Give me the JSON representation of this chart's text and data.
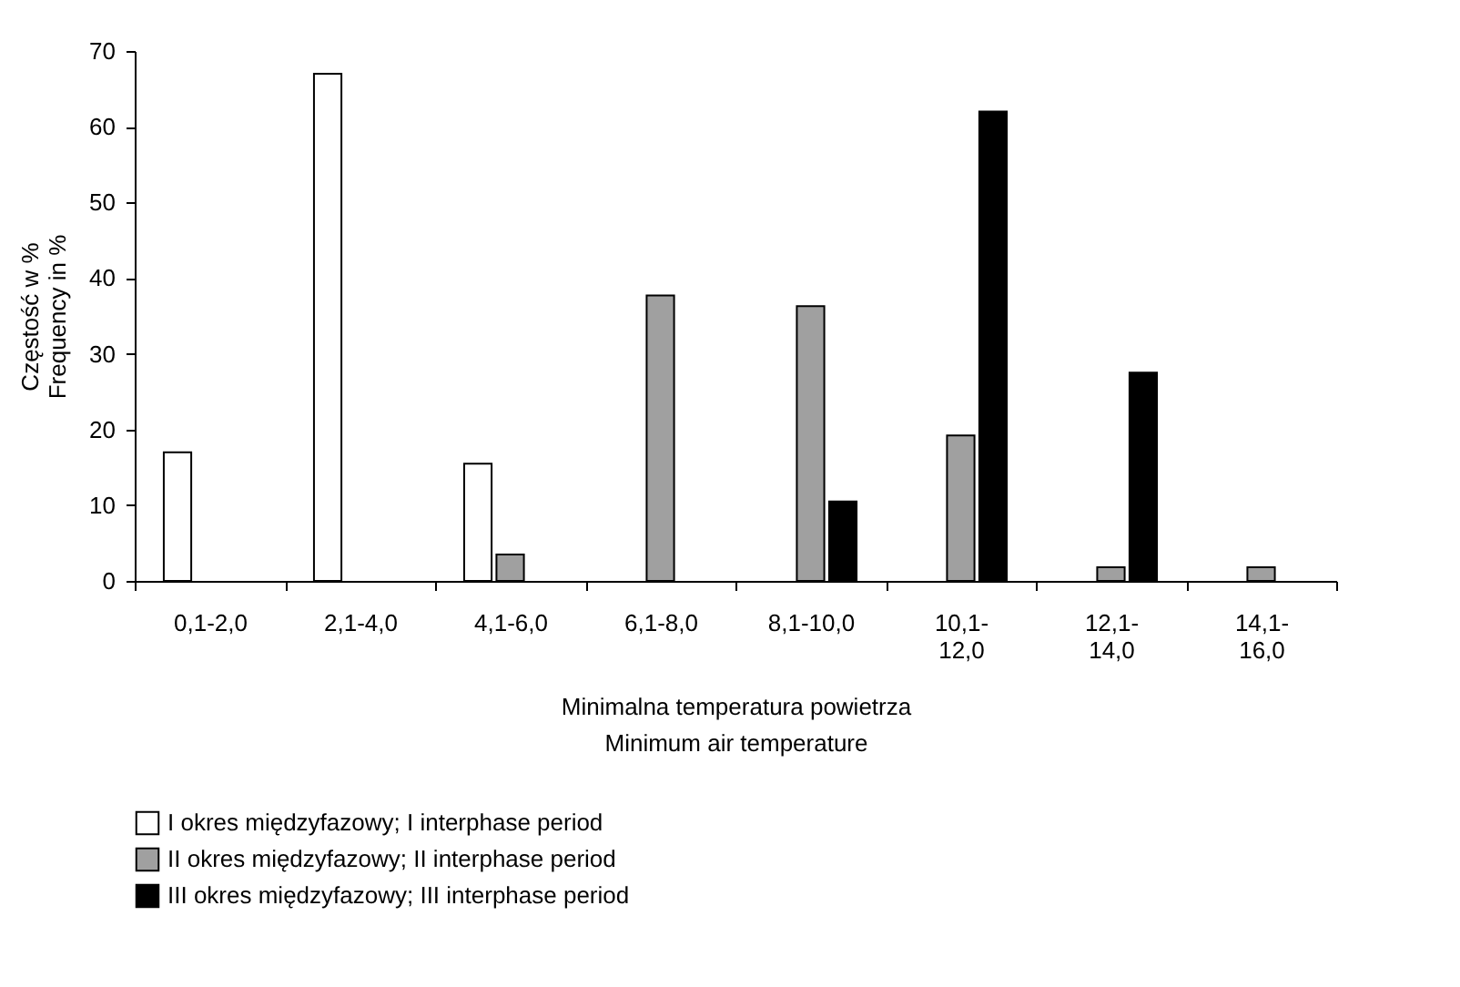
{
  "chart_data": {
    "type": "bar",
    "xlabel": "Minimalna temperatura powietrza\nMinimum air temperature",
    "ylabel": "Częstość w %\nFrequency in %",
    "categories": [
      "0,1-2,0",
      "2,1-4,0",
      "4,1-6,0",
      "6,1-8,0",
      "8,1-10,0",
      "10,1-12,0",
      "12,1-14,0",
      "14,1-16,0"
    ],
    "series": [
      {
        "name": "I okres międzyfazowy; I interphase period",
        "color": "#ffffff",
        "values": [
          17,
          67,
          15.5,
          null,
          null,
          null,
          null,
          null
        ]
      },
      {
        "name": "II okres międzyfazowy; II interphase period",
        "color": "#a0a0a0",
        "values": [
          null,
          null,
          3.5,
          37.7,
          36.3,
          19.2,
          1.8,
          1.8
        ]
      },
      {
        "name": "III okres międzyfazowy; III interphase period",
        "color": "#000000",
        "values": [
          null,
          null,
          null,
          null,
          10.5,
          62,
          27.5,
          null
        ]
      }
    ],
    "ylim": [
      0,
      70
    ],
    "yticks": [
      0,
      10,
      20,
      30,
      40,
      50,
      60,
      70
    ],
    "grid": false,
    "legend": "bottom"
  }
}
